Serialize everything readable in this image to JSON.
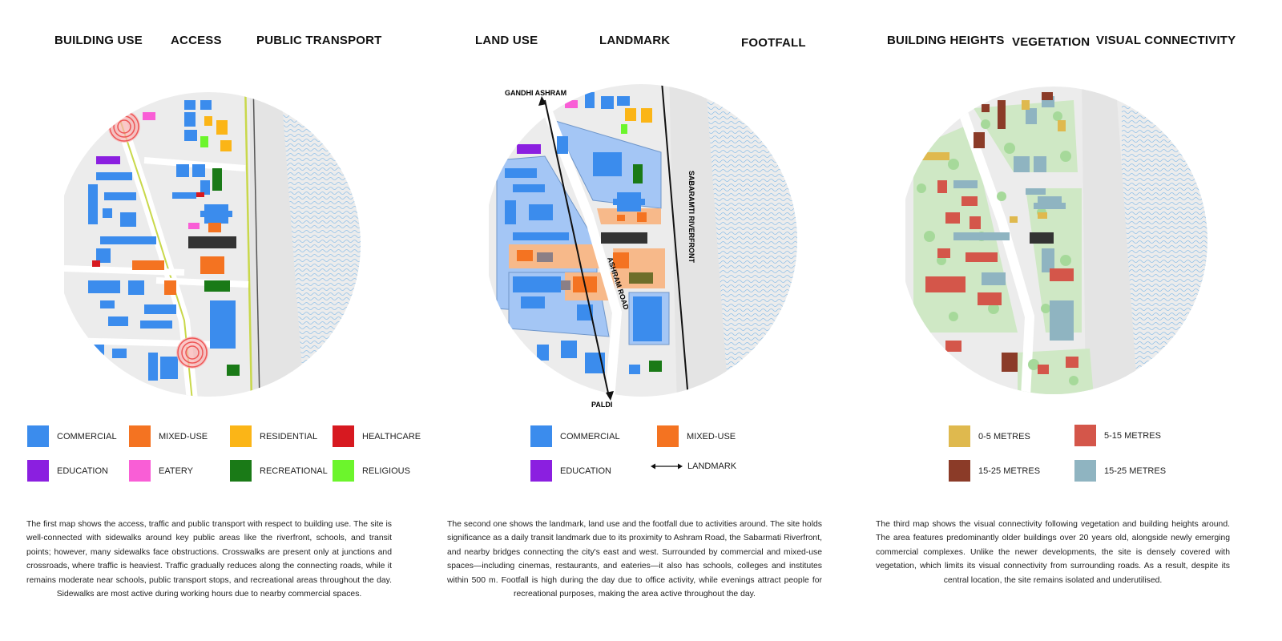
{
  "panels": [
    {
      "headers": [
        "BUILDING USE",
        "ACCESS",
        "PUBLIC TRANSPORT"
      ],
      "legend": [
        {
          "label": "COMMERCIAL",
          "color": "#3b8ced"
        },
        {
          "label": "MIXED-USE",
          "color": "#f47321"
        },
        {
          "label": "RESIDENTIAL",
          "color": "#fbb517"
        },
        {
          "label": "HEALTHCARE",
          "color": "#d71920"
        },
        {
          "label": "EDUCATION",
          "color": "#8b1fe0"
        },
        {
          "label": "EATERY",
          "color": "#f95ed6"
        },
        {
          "label": "RECREATIONAL",
          "color": "#1a7a17"
        },
        {
          "label": "RELIGIOUS",
          "color": "#6cf52c"
        }
      ],
      "description": "The first map shows the access, traffic and public transport with respect to building use. The site is well-connected with sidewalks around key public areas like the riverfront, schools, and transit points; however, many sidewalks face obstructions. Crosswalks are present only at junctions and crossroads, where traffic is heaviest. Traffic gradually reduces along the connecting roads, while it remains moderate near schools, public transport stops, and recreational areas throughout the day. Sidewalks are most active during working hours due to nearby commercial spaces."
    },
    {
      "headers": [
        "LAND USE",
        "LANDMARK",
        "FOOTFALL"
      ],
      "map_labels": {
        "north": "GANDHI ASHRAM",
        "south": "PALDI",
        "road": "ASHRAM ROAD",
        "river": "SABARAMTI RIVERFRONT"
      },
      "legend": [
        {
          "label": "COMMERCIAL",
          "color": "#3b8ced"
        },
        {
          "label": "MIXED-USE",
          "color": "#f47321"
        },
        {
          "label": "EDUCATION",
          "color": "#8b1fe0"
        },
        {
          "label": "LANDMARK",
          "icon": "double-arrow-icon"
        }
      ],
      "description": "The second one shows the landmark, land use and the footfall due to activities around. The site holds significance as a daily transit landmark due to its proximity to Ashram Road, the Sabarmati Riverfront, and nearby bridges connecting the city's east and west. Surrounded by commercial and mixed-use spaces—including cinemas, restaurants, and eateries—it also has schools, colleges and institutes within 500 m. Footfall is high during the day due to office activity, while evenings attract people for recreational purposes, making the area active throughout the day."
    },
    {
      "headers": [
        "BUILDING HEIGHTS",
        "VEGETATION",
        "VISUAL CONNECTIVITY"
      ],
      "legend": [
        {
          "label": "0-5 METRES",
          "color": "#dfb94e"
        },
        {
          "label": "5-15 METRES",
          "color": "#d4564a"
        },
        {
          "label": "15-25 METRES",
          "color": "#8b3b28"
        },
        {
          "label": "15-25 METRES",
          "color": "#8fb4c1"
        }
      ],
      "description": "The third map shows the visual connectivity following vegetation and building heights around. The area features predominantly older buildings over 20 years old, alongside newly emerging commercial complexes. Unlike the newer developments, the site is densely covered with vegetation, which limits its visual connectivity from surrounding roads. As a result, despite its central location, the site remains isolated and underutilised."
    }
  ]
}
